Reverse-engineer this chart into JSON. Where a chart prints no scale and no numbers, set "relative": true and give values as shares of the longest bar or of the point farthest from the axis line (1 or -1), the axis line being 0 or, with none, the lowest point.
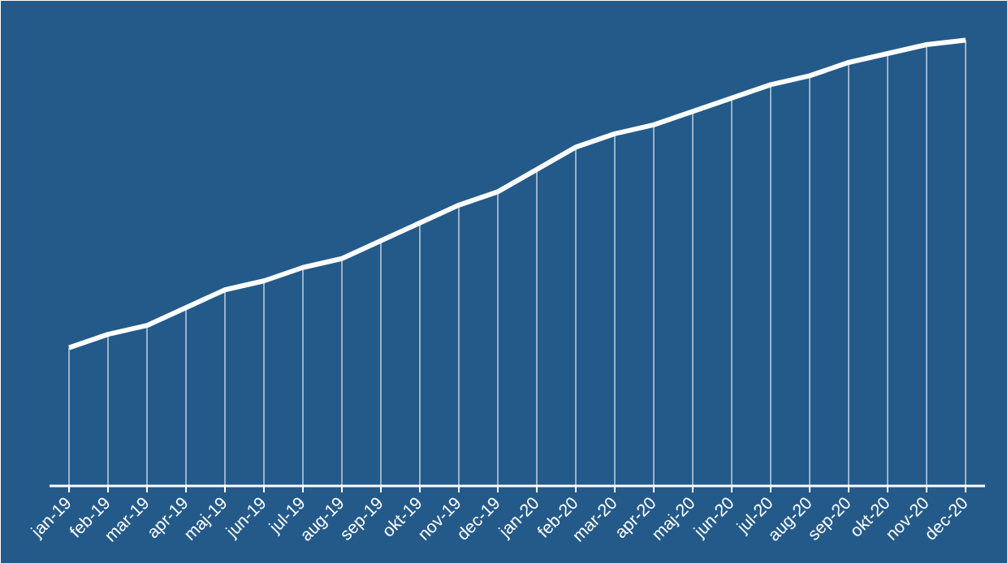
{
  "chart_data": {
    "type": "line",
    "relative": true,
    "categories": [
      "jan-19",
      "feb-19",
      "mar-19",
      "apr-19",
      "maj-19",
      "jun-19",
      "jul-19",
      "aug-19",
      "sep-19",
      "okt-19",
      "nov-19",
      "dec-19",
      "jan-20",
      "feb-20",
      "mar-20",
      "apr-20",
      "maj-20",
      "jun-20",
      "jul-20",
      "aug-20",
      "sep-20",
      "okt-20",
      "nov-20",
      "dec-20"
    ],
    "series": [
      {
        "type": "bar",
        "color": "#c8d6e5",
        "values": [
          0.31,
          0.34,
          0.36,
          0.4,
          0.44,
          0.46,
          0.49,
          0.51,
          0.55,
          0.59,
          0.63,
          0.66,
          0.71,
          0.76,
          0.79,
          0.81,
          0.84,
          0.87,
          0.9,
          0.92,
          0.95,
          0.97,
          0.99,
          1.0
        ]
      },
      {
        "color": "#ffffff",
        "values": [
          0.31,
          0.34,
          0.36,
          0.4,
          0.44,
          0.46,
          0.49,
          0.51,
          0.55,
          0.59,
          0.63,
          0.66,
          0.71,
          0.76,
          0.79,
          0.81,
          0.84,
          0.87,
          0.9,
          0.92,
          0.95,
          0.97,
          0.99,
          1.0
        ]
      }
    ]
  }
}
